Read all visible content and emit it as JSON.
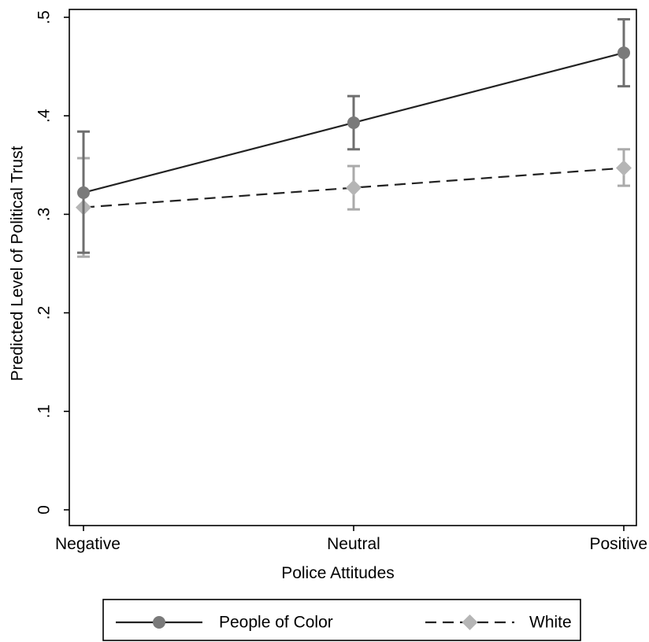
{
  "chart_data": {
    "type": "line",
    "categories": [
      "Negative",
      "Neutral",
      "Positive"
    ],
    "xlabel": "Police Attitudes",
    "ylabel": "Predicted Level of Political Trust",
    "ylim": [
      0,
      0.5
    ],
    "yticks": [
      {
        "value": 0,
        "label": "0"
      },
      {
        "value": 0.1,
        "label": ".1"
      },
      {
        "value": 0.2,
        "label": ".2"
      },
      {
        "value": 0.3,
        "label": ".3"
      },
      {
        "value": 0.4,
        "label": ".4"
      },
      {
        "value": 0.5,
        "label": ".5"
      }
    ],
    "grid": false,
    "legend_position": "bottom",
    "series": [
      {
        "name": "People of Color",
        "marker": "circle",
        "line_style": "solid",
        "line_color": "#222222",
        "marker_color": "#7a7a7a",
        "ci_color": "#6f6f6f",
        "values": [
          0.322,
          0.393,
          0.464
        ],
        "ci_low": [
          0.261,
          0.366,
          0.43
        ],
        "ci_high": [
          0.384,
          0.42,
          0.498
        ]
      },
      {
        "name": "White",
        "marker": "diamond",
        "line_style": "dashed",
        "line_color": "#222222",
        "marker_color": "#b5b5b5",
        "ci_color": "#aaaaaa",
        "values": [
          0.307,
          0.327,
          0.347
        ],
        "ci_low": [
          0.257,
          0.305,
          0.329
        ],
        "ci_high": [
          0.357,
          0.349,
          0.366
        ]
      }
    ]
  }
}
